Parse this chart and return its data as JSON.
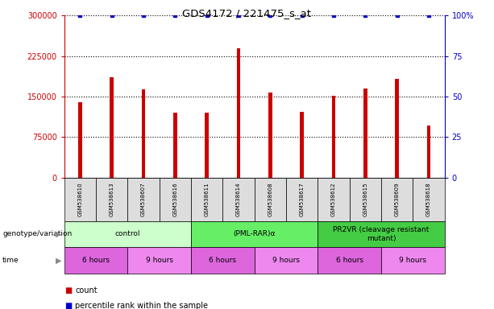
{
  "title": "GDS4172 / 221475_s_at",
  "samples": [
    "GSM538610",
    "GSM538613",
    "GSM538607",
    "GSM538616",
    "GSM538611",
    "GSM538614",
    "GSM538608",
    "GSM538617",
    "GSM538612",
    "GSM538615",
    "GSM538609",
    "GSM538618"
  ],
  "counts": [
    140000,
    185000,
    163000,
    120000,
    120000,
    240000,
    158000,
    122000,
    152000,
    165000,
    183000,
    97000
  ],
  "percentile_rank": [
    100,
    100,
    100,
    100,
    100,
    100,
    100,
    100,
    100,
    100,
    100,
    100
  ],
  "bar_color": "#cc0000",
  "dot_color": "#0000cc",
  "ylim_left": [
    0,
    300000
  ],
  "ylim_right": [
    0,
    100
  ],
  "yticks_left": [
    0,
    75000,
    150000,
    225000,
    300000
  ],
  "ytick_labels_left": [
    "0",
    "75000",
    "150000",
    "225000",
    "300000"
  ],
  "yticks_right": [
    0,
    25,
    50,
    75,
    100
  ],
  "ytick_labels_right": [
    "0",
    "25",
    "50",
    "75",
    "100%"
  ],
  "genotype_groups": [
    {
      "label": "control",
      "start": 0,
      "end": 4,
      "color": "#ccffcc"
    },
    {
      "label": "(PML-RAR)α",
      "start": 4,
      "end": 8,
      "color": "#66ee66"
    },
    {
      "label": "PR2VR (cleavage resistant\nmutant)",
      "start": 8,
      "end": 12,
      "color": "#44cc44"
    }
  ],
  "time_groups": [
    {
      "label": "6 hours",
      "start": 0,
      "end": 2,
      "color": "#dd66dd"
    },
    {
      "label": "9 hours",
      "start": 2,
      "end": 4,
      "color": "#ee88ee"
    },
    {
      "label": "6 hours",
      "start": 4,
      "end": 6,
      "color": "#dd66dd"
    },
    {
      "label": "9 hours",
      "start": 6,
      "end": 8,
      "color": "#ee88ee"
    },
    {
      "label": "6 hours",
      "start": 8,
      "end": 10,
      "color": "#dd66dd"
    },
    {
      "label": "9 hours",
      "start": 10,
      "end": 12,
      "color": "#ee88ee"
    }
  ],
  "legend_count_color": "#cc0000",
  "legend_dot_color": "#0000cc",
  "left_axis_color": "#cc0000",
  "right_axis_color": "#0000cc",
  "sample_bg_color": "#dddddd",
  "bar_width": 0.12
}
